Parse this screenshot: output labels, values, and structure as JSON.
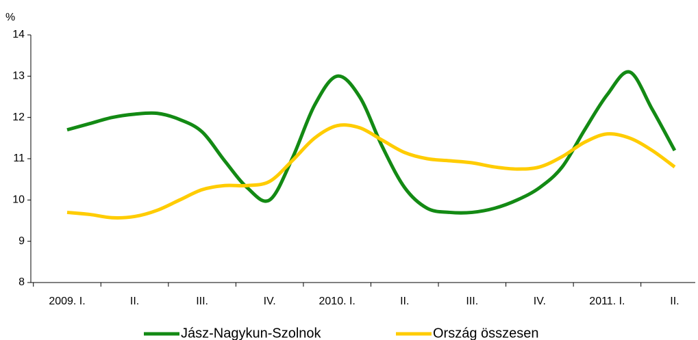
{
  "chart_data": {
    "type": "line",
    "y_label": "%",
    "categories": [
      "2009. I.",
      null,
      null,
      "II.",
      null,
      null,
      "III.",
      null,
      null,
      "IV.",
      null,
      null,
      "2010. I.",
      null,
      null,
      "II.",
      null,
      null,
      "III.",
      null,
      null,
      "IV.",
      null,
      null,
      "2011. I.",
      null,
      null,
      "II."
    ],
    "series": [
      {
        "name": "Jász-Nagykun-Szolnok",
        "color": "#138a14",
        "values": [
          11.7,
          11.85,
          12.0,
          12.08,
          12.1,
          11.95,
          11.65,
          10.95,
          10.3,
          10.0,
          11.0,
          12.3,
          13.0,
          12.5,
          11.3,
          10.3,
          9.8,
          9.7,
          9.7,
          9.8,
          10.0,
          10.3,
          10.8,
          11.7,
          12.55,
          13.1,
          12.2,
          11.2
        ]
      },
      {
        "name": "Ország összesen",
        "color": "#ffcc00",
        "values": [
          9.7,
          9.65,
          9.57,
          9.6,
          9.75,
          10.0,
          10.25,
          10.35,
          10.35,
          10.45,
          10.95,
          11.5,
          11.8,
          11.75,
          11.45,
          11.15,
          11.0,
          10.95,
          10.9,
          10.8,
          10.75,
          10.8,
          11.05,
          11.4,
          11.6,
          11.5,
          11.2,
          10.8
        ]
      }
    ],
    "ylim": [
      8,
      14
    ],
    "yticks": [
      8,
      9,
      10,
      11,
      12,
      13,
      14
    ],
    "grid": false,
    "legend": "bottom"
  }
}
